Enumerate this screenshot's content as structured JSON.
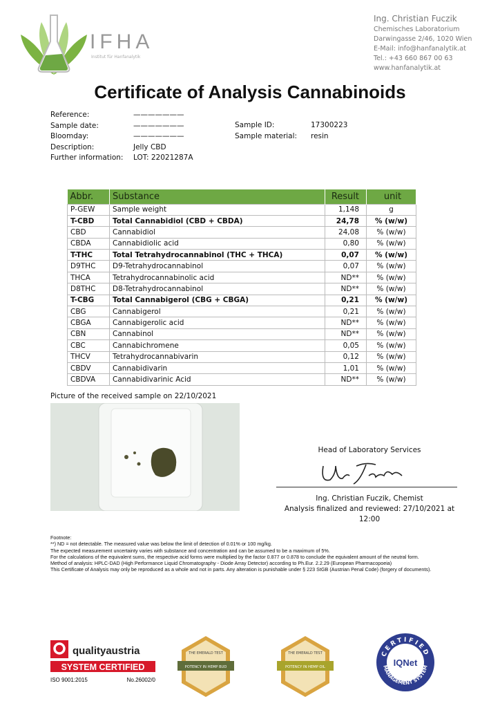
{
  "logo": {
    "text": "IFHA",
    "subtitle": "Institut für Hanfanalytik"
  },
  "lab": {
    "name": "Ing. Christian Fuczik",
    "lines": [
      "Chemisches Laboratorium",
      "Darwingasse 2/46, 1020 Wien",
      "E-Mail: info@hanfanalytik.at",
      "Tel.: +43 660 867 00 63",
      "www.hanfanalytik.at"
    ]
  },
  "title": "Certificate of Analysis Cannabinoids",
  "meta_left": [
    {
      "k": "Reference:",
      "v": "———————"
    },
    {
      "k": "Sample date:",
      "v": "———————"
    },
    {
      "k": "Bloomday:",
      "v": "———————"
    },
    {
      "k": "Description:",
      "v": "Jelly CBD"
    },
    {
      "k": "Further information:",
      "v": "LOT: 22021287A"
    }
  ],
  "meta_right": [
    {
      "k": "Sample ID:",
      "v": "17300223"
    },
    {
      "k": "Sample material:",
      "v": "resin"
    }
  ],
  "table": {
    "headers": [
      "Abbr.",
      "Substance",
      "Result",
      "unit"
    ],
    "rows": [
      {
        "abbr": "P-GEW",
        "substance": "Sample weight",
        "result": "1,148",
        "unit": "g",
        "bold": false
      },
      {
        "abbr": "T-CBD",
        "substance": "Total Cannabidiol (CBD + CBDA)",
        "result": "24,78",
        "unit": "% (w/w)",
        "bold": true
      },
      {
        "abbr": "CBD",
        "substance": "Cannabidiol",
        "result": "24,08",
        "unit": "% (w/w)",
        "bold": false
      },
      {
        "abbr": "CBDA",
        "substance": "Cannabidiolic acid",
        "result": "0,80",
        "unit": "% (w/w)",
        "bold": false
      },
      {
        "abbr": "T-THC",
        "substance": "Total Tetrahydrocannabinol (THC + THCA)",
        "result": "0,07",
        "unit": "% (w/w)",
        "bold": true
      },
      {
        "abbr": "D9THC",
        "substance": "D9-Tetrahydrocannabinol",
        "result": "0,07",
        "unit": "% (w/w)",
        "bold": false
      },
      {
        "abbr": "THCA",
        "substance": "Tetrahydrocannabinolic acid",
        "result": "ND**",
        "unit": "% (w/w)",
        "bold": false
      },
      {
        "abbr": "D8THC",
        "substance": "D8-Tetrahydrocannabinol",
        "result": "ND**",
        "unit": "% (w/w)",
        "bold": false
      },
      {
        "abbr": "T-CBG",
        "substance": "Total Cannabigerol (CBG + CBGA)",
        "result": "0,21",
        "unit": "% (w/w)",
        "bold": true
      },
      {
        "abbr": "CBG",
        "substance": "Cannabigerol",
        "result": "0,21",
        "unit": "% (w/w)",
        "bold": false
      },
      {
        "abbr": "CBGA",
        "substance": "Cannabigerolic acid",
        "result": "ND**",
        "unit": "% (w/w)",
        "bold": false
      },
      {
        "abbr": "CBN",
        "substance": "Cannabinol",
        "result": "ND**",
        "unit": "% (w/w)",
        "bold": false
      },
      {
        "abbr": "CBC",
        "substance": "Cannabichromene",
        "result": "0,05",
        "unit": "% (w/w)",
        "bold": false
      },
      {
        "abbr": "THCV",
        "substance": "Tetrahydrocannabivarin",
        "result": "0,12",
        "unit": "% (w/w)",
        "bold": false
      },
      {
        "abbr": "CBDV",
        "substance": "Cannabidivarin",
        "result": "1,01",
        "unit": "% (w/w)",
        "bold": false
      },
      {
        "abbr": "CBDVA",
        "substance": "Cannabidivarinic Acid",
        "result": "ND**",
        "unit": "% (w/w)",
        "bold": false
      }
    ],
    "header_color": "#6ea844"
  },
  "picture_caption": "Picture of the received sample on 22/10/2021",
  "signature": {
    "head": "Head of Laboratory Services",
    "name": "Ing. Christian Fuczik, Chemist",
    "finalized": "Analysis finalized and reviewed: 27/10/2021 at 12:00"
  },
  "footnote": [
    "Footnote:",
    "**) ND = not detectable. The measured value was below the limit of detection of 0.01% or 100 mg/kg.",
    "The expected measurement uncertainty varies with substance and concentration and can be assumed to be a maximum of 5%.",
    "For the calculations of the equivalent sums, the respective acid forms were multiplied by the factor 0.877 or 0.878 to conclude the equivalent amount of the neutral form.",
    "Method of analysis: HPLC-DAD (High Performance Liquid Chromatography - Diode Array Detector) according to Ph.Eur. 2.2.29 (European Pharmacopoeia)",
    "This Certificate of Analysis may only be reproduced as a whole and not in parts. Any alteration is punishable under § 223 StGB (Austrian Penal Code) (forgery of documents)."
  ],
  "certs": {
    "qa": {
      "brand": "qualityaustria",
      "system": "SYSTEM CERTIFIED",
      "iso": "ISO 9001:2015",
      "no": "No.26002/0"
    },
    "badge1": {
      "top": "THE EMERALD TEST",
      "band": "POTENCY IN HEMP BUD"
    },
    "badge2": {
      "top": "THE EMERALD TEST",
      "band": "POTENCY IN HEMP OIL"
    },
    "iqnet": {
      "top": "CERTIFIED",
      "mid": "IQNet",
      "bottom": "MANAGEMENT SYSTEM"
    }
  }
}
